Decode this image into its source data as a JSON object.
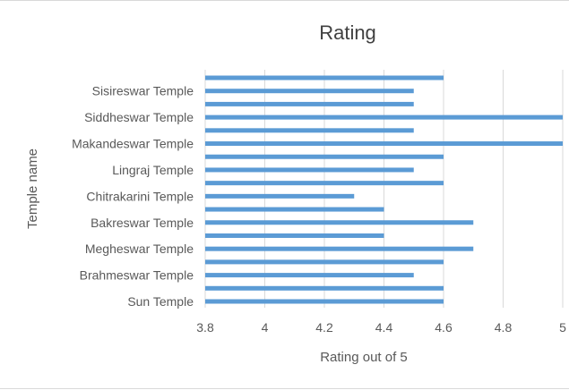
{
  "chart_data": {
    "type": "bar",
    "orientation": "horizontal",
    "title": "Rating",
    "xlabel": "Rating  out of 5",
    "ylabel": "Temple name",
    "xlim": [
      3.8,
      5
    ],
    "xticks": [
      "3.8",
      "4",
      "4.2",
      "4.4",
      "4.6",
      "4.8",
      "5"
    ],
    "grid": true,
    "legend": "none",
    "bar_color": "#5b9bd5",
    "categories": [
      "Sun Temple",
      "",
      "Brahmeswar Temple",
      "",
      "Megheswar Temple",
      "",
      "Bakreswar Temple",
      "",
      "Chitrakarini Temple",
      "",
      "Lingraj Temple",
      "",
      "Makandeswar Temple",
      "",
      "Siddheswar Temple",
      "",
      "Sisireswar Temple",
      ""
    ],
    "values": [
      4.6,
      4.6,
      4.5,
      4.6,
      4.7,
      4.4,
      4.7,
      4.4,
      4.3,
      4.6,
      4.5,
      4.6,
      5.0,
      4.5,
      5.0,
      4.5,
      4.5,
      4.6
    ]
  }
}
